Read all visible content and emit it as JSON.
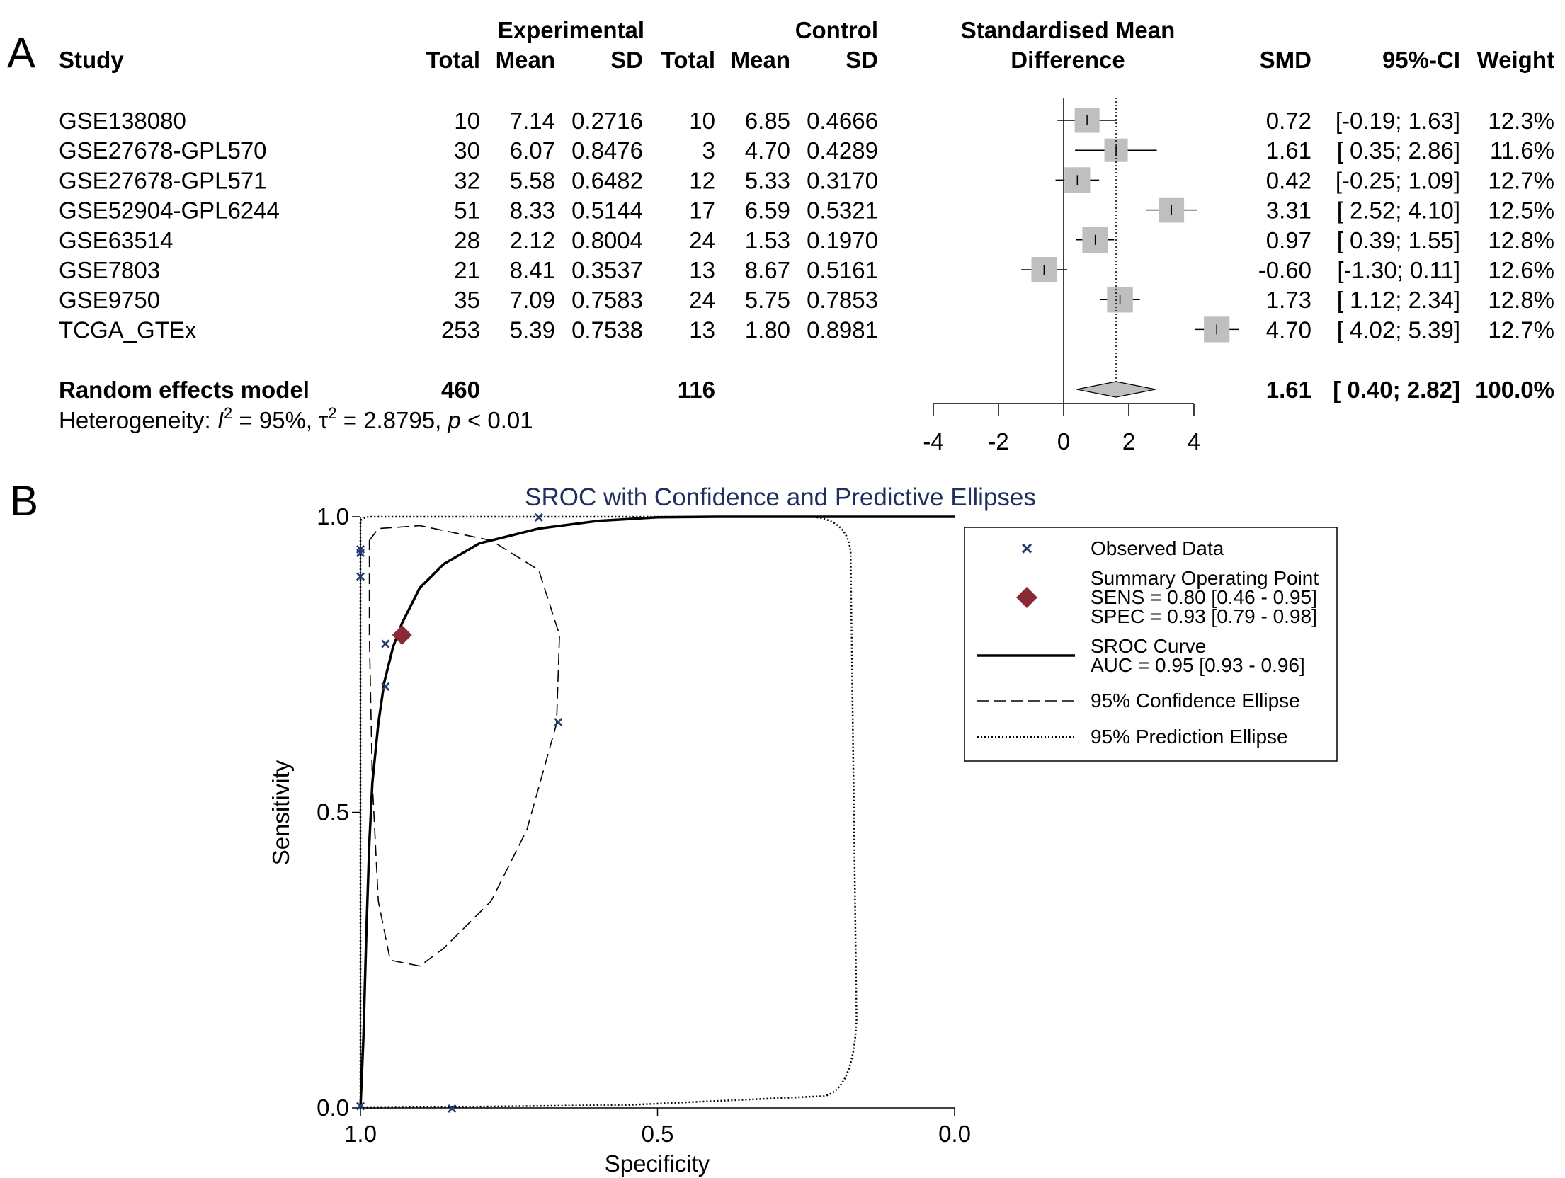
{
  "panel_a_label": "A",
  "panel_b_label": "B",
  "chart_data": [
    {
      "type": "table",
      "subtype": "forest_plot",
      "headers": {
        "study": "Study",
        "experimental": "Experimental",
        "control": "Control",
        "total": "Total",
        "mean": "Mean",
        "sd": "SD",
        "smd_title_1": "Standardised Mean",
        "smd_title_2": "Difference",
        "smd": "SMD",
        "ci": "95%-CI",
        "weight": "Weight"
      },
      "rows": [
        {
          "study": "GSE138080",
          "e_total": "10",
          "e_mean": "7.14",
          "e_sd": "0.2716",
          "c_total": "10",
          "c_mean": "6.85",
          "c_sd": "0.4666",
          "smd": 0.72,
          "lo": -0.19,
          "hi": 1.63,
          "weight_val": 12.3,
          "smd_text": "0.72",
          "ci_text": "[-0.19; 1.63]",
          "weight": "12.3%"
        },
        {
          "study": "GSE27678-GPL570",
          "e_total": "30",
          "e_mean": "6.07",
          "e_sd": "0.8476",
          "c_total": "3",
          "c_mean": "4.70",
          "c_sd": "0.4289",
          "smd": 1.61,
          "lo": 0.35,
          "hi": 2.86,
          "weight_val": 11.6,
          "smd_text": "1.61",
          "ci_text": "[ 0.35; 2.86]",
          "weight": "11.6%"
        },
        {
          "study": "GSE27678-GPL571",
          "e_total": "32",
          "e_mean": "5.58",
          "e_sd": "0.6482",
          "c_total": "12",
          "c_mean": "5.33",
          "c_sd": "0.3170",
          "smd": 0.42,
          "lo": -0.25,
          "hi": 1.09,
          "weight_val": 12.7,
          "smd_text": "0.42",
          "ci_text": "[-0.25; 1.09]",
          "weight": "12.7%"
        },
        {
          "study": "GSE52904-GPL6244",
          "e_total": "51",
          "e_mean": "8.33",
          "e_sd": "0.5144",
          "c_total": "17",
          "c_mean": "6.59",
          "c_sd": "0.5321",
          "smd": 3.31,
          "lo": 2.52,
          "hi": 4.1,
          "weight_val": 12.5,
          "smd_text": "3.31",
          "ci_text": "[ 2.52; 4.10]",
          "weight": "12.5%"
        },
        {
          "study": "GSE63514",
          "e_total": "28",
          "e_mean": "2.12",
          "e_sd": "0.8004",
          "c_total": "24",
          "c_mean": "1.53",
          "c_sd": "0.1970",
          "smd": 0.97,
          "lo": 0.39,
          "hi": 1.55,
          "weight_val": 12.8,
          "smd_text": "0.97",
          "ci_text": "[ 0.39; 1.55]",
          "weight": "12.8%"
        },
        {
          "study": "GSE7803",
          "e_total": "21",
          "e_mean": "8.41",
          "e_sd": "0.3537",
          "c_total": "13",
          "c_mean": "8.67",
          "c_sd": "0.5161",
          "smd": -0.6,
          "lo": -1.3,
          "hi": 0.11,
          "weight_val": 12.6,
          "smd_text": "-0.60",
          "ci_text": "[-1.30; 0.11]",
          "weight": "12.6%"
        },
        {
          "study": "GSE9750",
          "e_total": "35",
          "e_mean": "7.09",
          "e_sd": "0.7583",
          "c_total": "24",
          "c_mean": "5.75",
          "c_sd": "0.7853",
          "smd": 1.73,
          "lo": 1.12,
          "hi": 2.34,
          "weight_val": 12.8,
          "smd_text": "1.73",
          "ci_text": "[ 1.12; 2.34]",
          "weight": "12.8%"
        },
        {
          "study": "TCGA_GTEx",
          "e_total": "253",
          "e_mean": "5.39",
          "e_sd": "0.7538",
          "c_total": "13",
          "c_mean": "1.80",
          "c_sd": "0.8981",
          "smd": 4.7,
          "lo": 4.02,
          "hi": 5.39,
          "weight_val": 12.7,
          "smd_text": "4.70",
          "ci_text": "[ 4.02; 5.39]",
          "weight": "12.7%"
        }
      ],
      "pooled": {
        "label": "Random effects model",
        "e_total": "460",
        "c_total": "116",
        "smd": 1.61,
        "lo": 0.4,
        "hi": 2.82,
        "smd_text": "1.61",
        "ci_text": "[ 0.40; 2.82]",
        "weight": "100.0%"
      },
      "heterogeneity": {
        "prefix": "Heterogeneity: ",
        "i_sym": "I",
        "i_sup": "2",
        "i_val": " = 95%, ",
        "tau_sym": "τ",
        "tau_sup": "2",
        "tau_val": " = 2.8795, ",
        "p_sym": "p",
        "p_val": " < 0.01"
      },
      "x_axis": {
        "ticks": [
          -4,
          -2,
          0,
          2,
          4
        ],
        "tick_labels": [
          "-4",
          "-2",
          "0",
          "2",
          "4"
        ],
        "range": [
          -4,
          4
        ],
        "null_line": 0,
        "ref_line": 1.61
      }
    },
    {
      "type": "scatter",
      "subtype": "sroc",
      "title": "SROC with Confidence and Predictive Ellipses",
      "xlabel": "Specificity",
      "ylabel": "Sensitivity",
      "x_reversed": true,
      "xlim": [
        1.0,
        0.0
      ],
      "ylim": [
        0.0,
        1.0
      ],
      "x_ticks": [
        1.0,
        0.5,
        0.0
      ],
      "x_tick_labels": [
        "1.0",
        "0.5",
        "0.0"
      ],
      "y_ticks": [
        0.0,
        0.5,
        1.0
      ],
      "y_tick_labels": [
        "0.0",
        "0.5",
        "1.0"
      ],
      "observed": [
        {
          "spec": 1.0,
          "sens": 0.946
        },
        {
          "spec": 1.0,
          "sens": 0.94
        },
        {
          "spec": 1.0,
          "sens": 0.9
        },
        {
          "spec": 0.958,
          "sens": 0.786
        },
        {
          "spec": 0.958,
          "sens": 0.714
        },
        {
          "spec": 0.667,
          "sens": 0.654
        },
        {
          "spec": 0.7,
          "sens": 1.0
        },
        {
          "spec": 0.846,
          "sens": 0.0
        },
        {
          "spec": 1.0,
          "sens": 0.004
        }
      ],
      "summary_point": {
        "spec": 0.93,
        "sens": 0.8
      },
      "legend": {
        "observed": "Observed Data",
        "summary_title": "Summary Operating Point",
        "summary_sens": "SENS = 0.80 [0.46 - 0.95]",
        "summary_spec": "SPEC = 0.93 [0.79 - 0.98]",
        "curve_title": "SROC Curve",
        "curve_auc": "AUC = 0.95 [0.93 - 0.96]",
        "confidence": "95% Confidence Ellipse",
        "prediction": "95% Prediction Ellipse"
      },
      "colors": {
        "observed": "#1f3c6e",
        "summary": "#8b2a35",
        "title": "#1f2f5e"
      },
      "auc": 0.95
    }
  ]
}
